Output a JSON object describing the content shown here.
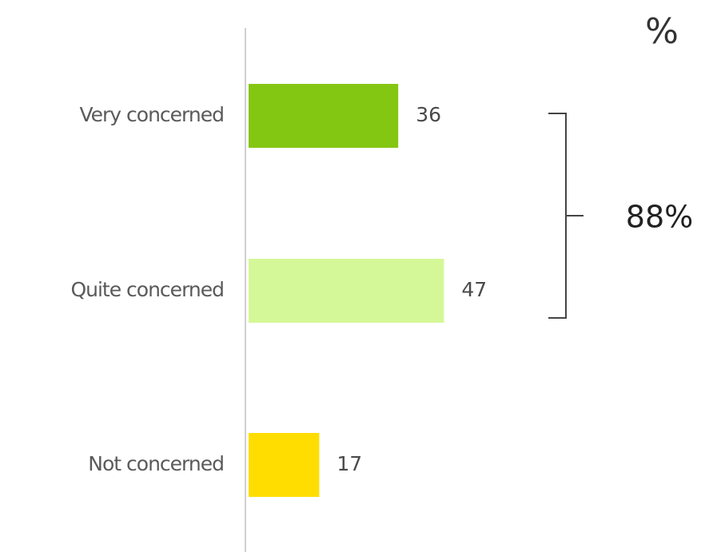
{
  "chart_data": {
    "type": "bar",
    "orientation": "horizontal",
    "unit_label": "%",
    "categories": [
      "Very concerned",
      "Quite concerned",
      "Not concerned"
    ],
    "values": [
      36,
      47,
      17
    ],
    "colors": [
      "#84c712",
      "#d4f797",
      "#ffdd00"
    ],
    "annotation": "88%"
  }
}
